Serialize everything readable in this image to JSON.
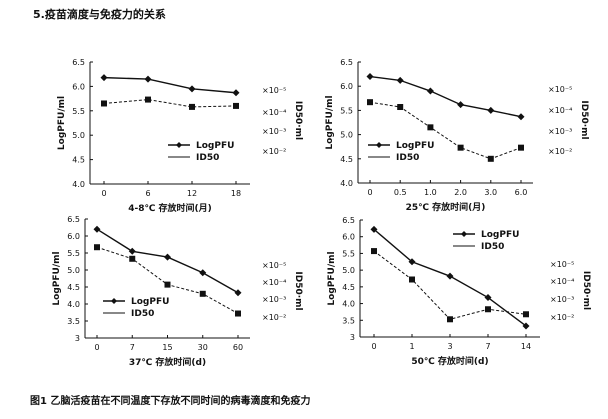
{
  "heading": "5.疫苗滴度与免疫力的关系",
  "caption": "图1   乙脑活疫苗在不同温度下存放不同时间的病毒滴度和免疫力",
  "chart_data": [
    {
      "type": "line",
      "categories": [
        "0",
        "6",
        "12",
        "18"
      ],
      "xlabel": "4-8℃ 存放时间(月)",
      "ylabel": "LogPFU/ml",
      "ylim": [
        4.0,
        6.5
      ],
      "yticks": [
        "4.0",
        "4.5",
        "5.0",
        "5.5",
        "6.0",
        "6.5"
      ],
      "y2label": "ID50·ml",
      "y2ticks": [
        "×10⁻⁵",
        "×10⁻⁴",
        "×10⁻³",
        "×10⁻²"
      ],
      "legend": [
        "LogPFU",
        "ID50"
      ],
      "legend_position": "bottom-right",
      "series": [
        {
          "name": "LogPFU",
          "values": [
            6.18,
            6.15,
            5.95,
            5.87
          ]
        },
        {
          "name": "ID50",
          "values": [
            5.65,
            5.73,
            5.58,
            5.6
          ]
        }
      ]
    },
    {
      "type": "line",
      "categories": [
        "0",
        "0.5",
        "1.0",
        "2.0",
        "3.0",
        "6.0"
      ],
      "xlabel": "25℃ 存放时间(月)",
      "ylabel": "LogPFU/ml",
      "ylim": [
        4.0,
        6.5
      ],
      "yticks": [
        "4.0",
        "4.5",
        "5.0",
        "5.5",
        "6.0",
        "6.5"
      ],
      "y2label": "ID50·ml",
      "y2ticks": [
        "×10⁻⁵",
        "×10⁻⁴",
        "×10⁻³",
        "×10⁻²"
      ],
      "legend": [
        "LogPFU",
        "ID50"
      ],
      "legend_position": "bottom-left",
      "series": [
        {
          "name": "LogPFU",
          "values": [
            6.2,
            6.12,
            5.9,
            5.62,
            5.5,
            5.37
          ]
        },
        {
          "name": "ID50",
          "values": [
            5.67,
            5.57,
            5.15,
            4.73,
            4.5,
            4.73
          ]
        }
      ]
    },
    {
      "type": "line",
      "categories": [
        "0",
        "7",
        "15",
        "30",
        "60"
      ],
      "xlabel": "37℃ 存放时间(d)",
      "ylabel": "LogPFU/ml",
      "ylim": [
        3.0,
        6.5
      ],
      "yticks": [
        "3",
        "3.5",
        "4.0",
        "4.5",
        "5.0",
        "5.5",
        "6.0",
        "6.5"
      ],
      "y2label": "ID50·ml",
      "y2ticks": [
        "×10⁻⁵",
        "×10⁻⁴",
        "×10⁻³",
        "×10⁻²"
      ],
      "legend": [
        "LogPFU",
        "ID50"
      ],
      "legend_position": "bottom-left",
      "series": [
        {
          "name": "LogPFU",
          "values": [
            6.2,
            5.55,
            5.38,
            4.92,
            4.33
          ]
        },
        {
          "name": "ID50",
          "values": [
            5.67,
            5.33,
            4.57,
            4.3,
            3.72
          ]
        }
      ]
    },
    {
      "type": "line",
      "categories": [
        "0",
        "1",
        "3",
        "7",
        "14"
      ],
      "xlabel": "50℃ 存放时间(d)",
      "ylabel": "LogPFU/ml",
      "ylim": [
        3.0,
        6.5
      ],
      "yticks": [
        "3",
        "3.5",
        "4.0",
        "4.5",
        "5.0",
        "5.5",
        "6.0",
        "6.5"
      ],
      "y2label": "ID50·ml",
      "y2ticks": [
        "×10⁻⁵",
        "×10⁻⁴",
        "×10⁻³",
        "×10⁻²"
      ],
      "legend": [
        "LogPFU",
        "ID50"
      ],
      "legend_position": "top-right",
      "series": [
        {
          "name": "LogPFU",
          "values": [
            6.22,
            5.25,
            4.82,
            4.18,
            3.33
          ]
        },
        {
          "name": "ID50",
          "values": [
            5.57,
            4.72,
            3.53,
            3.83,
            3.68
          ]
        }
      ]
    }
  ]
}
